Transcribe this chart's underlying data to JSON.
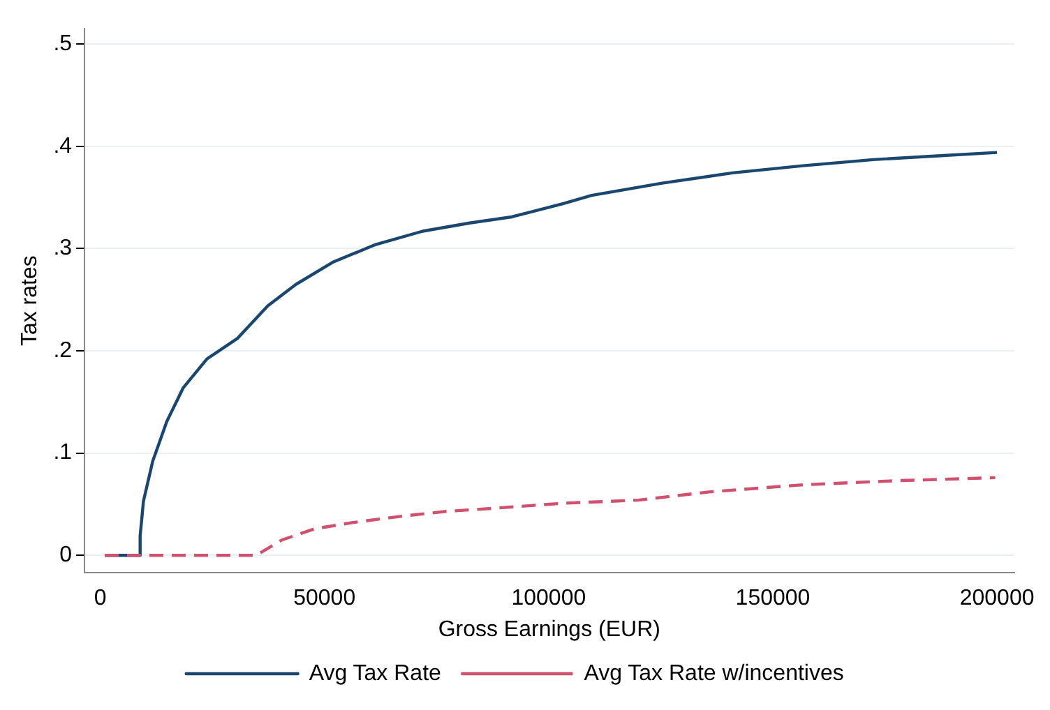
{
  "chart_data": {
    "type": "line",
    "xlabel": "Gross Earnings (EUR)",
    "ylabel": "Tax rates",
    "xlim": [
      -3500,
      203800
    ],
    "ylim": [
      -0.017,
      0.515
    ],
    "xticks": [
      0,
      50000,
      100000,
      150000,
      200000
    ],
    "yticks": [
      0,
      {
        "value": 0.1,
        "label": ".1"
      },
      {
        "value": 0.2,
        "label": ".2"
      },
      {
        "value": 0.3,
        "label": ".3"
      },
      {
        "value": 0.4,
        "label": ".4"
      },
      {
        "value": 0.5,
        "label": ".5"
      }
    ],
    "grid": "y",
    "legend": "bottom",
    "marker": "none",
    "series": [
      {
        "name": "Avg Tax Rate",
        "color": "#1a476f",
        "line_style": "solid",
        "x": [
          1000,
          8900,
          8900,
          9640,
          11700,
          14850,
          18530,
          23770,
          30560,
          37370,
          43650,
          52030,
          61450,
          71910,
          82370,
          91790,
          103300,
          109600,
          125300,
          141000,
          156700,
          172400,
          188100,
          200000
        ],
        "values": [
          0,
          0,
          0.019,
          0.053,
          0.092,
          0.131,
          0.164,
          0.192,
          0.212,
          0.244,
          0.265,
          0.287,
          0.304,
          0.317,
          0.325,
          0.331,
          0.344,
          0.352,
          0.364,
          0.374,
          0.381,
          0.387,
          0.391,
          0.394
        ]
      },
      {
        "name": "Avg Tax Rate w/incentives",
        "color": "#d0506e",
        "line_style": "dashed",
        "x": [
          1000,
          34760,
          40500,
          47830,
          56200,
          66660,
          77140,
          87610,
          103300,
          120000,
          135700,
          156700,
          177600,
          199600
        ],
        "values": [
          0,
          0,
          0.015,
          0.026,
          0.032,
          0.038,
          0.043,
          0.046,
          0.051,
          0.054,
          0.062,
          0.069,
          0.073,
          0.076
        ]
      }
    ]
  }
}
